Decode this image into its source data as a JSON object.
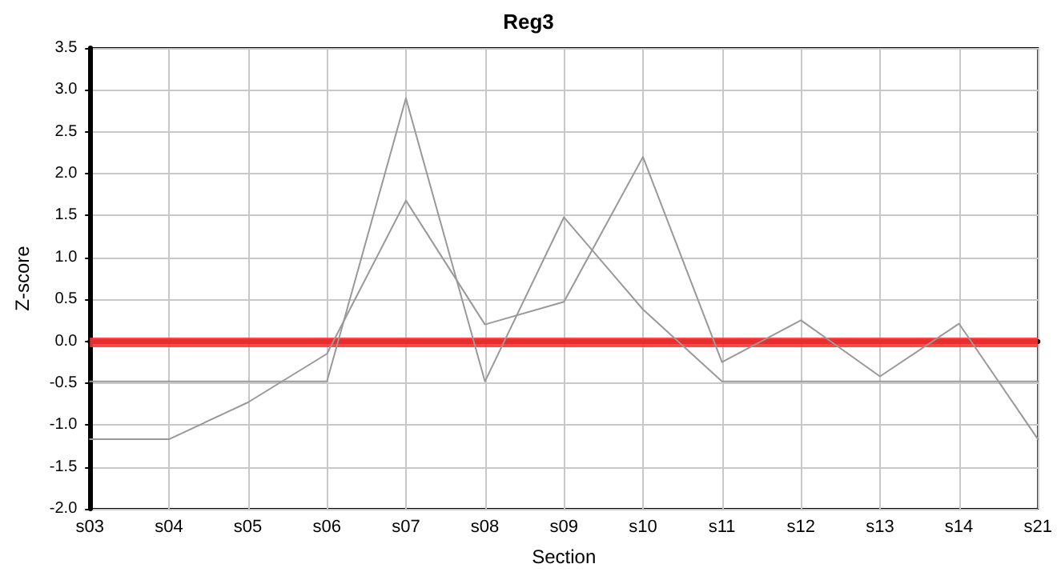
{
  "chart_data": {
    "type": "line",
    "title": "Reg3",
    "xlabel": "Section",
    "ylabel": "Z-score",
    "categories": [
      "s03",
      "s04",
      "s05",
      "s06",
      "s07",
      "s08",
      "s09",
      "s10",
      "s11",
      "s12",
      "s13",
      "s14",
      "s21"
    ],
    "series": [
      {
        "color": "#999999",
        "values": [
          -0.48,
          -0.48,
          -0.48,
          -0.48,
          2.9,
          -0.48,
          1.48,
          0.38,
          -0.48,
          -0.48,
          -0.48,
          -0.48,
          -0.48
        ]
      },
      {
        "color": "#999999",
        "values": [
          -1.17,
          -1.17,
          -0.73,
          -0.15,
          1.68,
          0.2,
          0.47,
          2.2,
          -0.25,
          0.25,
          -0.42,
          0.21,
          -1.17
        ]
      }
    ],
    "ylim": [
      -2,
      3.5
    ],
    "yticks": [
      {
        "value": -2,
        "label": "-2.0"
      },
      -1.5,
      {
        "value": -1,
        "label": "-1.0"
      },
      -0.5,
      {
        "value": 0,
        "label": "0.0"
      },
      0.5,
      {
        "value": 1,
        "label": "1.0"
      },
      1.5,
      {
        "value": 2,
        "label": "2.0"
      },
      2.5,
      {
        "value": 3,
        "label": "3.0"
      },
      3.5
    ],
    "ref_lines": [
      {
        "axis": "y",
        "value": 0,
        "color": "#ff3333"
      }
    ],
    "grid": true,
    "marker": "none",
    "line_style": "solid"
  }
}
